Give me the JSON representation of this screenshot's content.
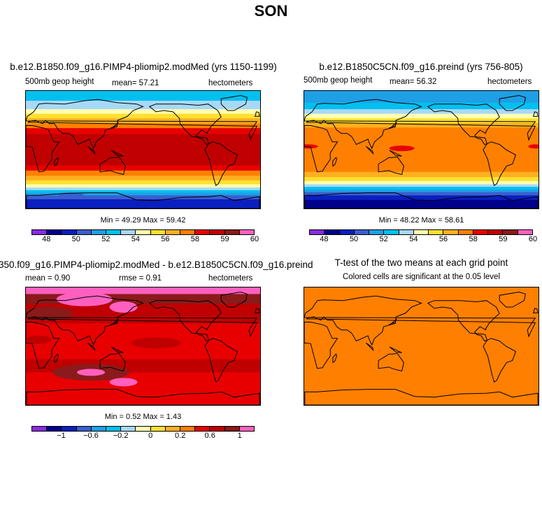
{
  "figure": {
    "title": "SON"
  },
  "palette": [
    "#8a2be2",
    "#00008b",
    "#0a1fbf",
    "#3a5fcd",
    "#1e9fe6",
    "#00c0f0",
    "#a8d8f8",
    "#ffffb0",
    "#ffe030",
    "#ffb020",
    "#ff8000",
    "#e80000",
    "#c00000",
    "#8b1a1a",
    "#ff60c0"
  ],
  "panels": [
    {
      "id": "a",
      "title": "b.e12.B1850.f09_g16.PIMP4-pliomip2.modMed (yrs 1150-1199)",
      "left_label": "500mb geop height",
      "mean_label": "mean=  57.21",
      "units": "hectometers",
      "minmax": "Min =  49.29 Max =  59.42",
      "ticks": [
        "48",
        "50",
        "52",
        "54",
        "56",
        "58",
        "59",
        "60"
      ],
      "bands": [
        {
          "lat": 90,
          "color": "#00c0f0"
        },
        {
          "lat": 75,
          "color": "#a8d8f8"
        },
        {
          "lat": 62,
          "color": "#ffffb0"
        },
        {
          "lat": 55,
          "color": "#ffe030"
        },
        {
          "lat": 48,
          "color": "#ffb020"
        },
        {
          "lat": 40,
          "color": "#ff8000"
        },
        {
          "lat": 33,
          "color": "#e80000"
        },
        {
          "lat": 24,
          "color": "#c00000"
        },
        {
          "lat": -24,
          "color": "#e80000"
        },
        {
          "lat": -32,
          "color": "#ff8000"
        },
        {
          "lat": -40,
          "color": "#ffb020"
        },
        {
          "lat": -47,
          "color": "#ffe030"
        },
        {
          "lat": -53,
          "color": "#ffffb0"
        },
        {
          "lat": -58,
          "color": "#a8d8f8"
        },
        {
          "lat": -62,
          "color": "#00c0f0"
        },
        {
          "lat": -66,
          "color": "#1e9fe6"
        },
        {
          "lat": -70,
          "color": "#3a5fcd"
        },
        {
          "lat": -76,
          "color": "#0a1fbf"
        }
      ]
    },
    {
      "id": "b",
      "title": "b.e12.B1850C5CN.f09_g16.preind (yrs 756-805)",
      "left_label": "500mb geop height",
      "mean_label": "mean=  56.32",
      "units": "hectometers",
      "minmax": "Min =  48.22 Max =  58.61",
      "ticks": [
        "48",
        "50",
        "52",
        "54",
        "56",
        "58",
        "59",
        "60"
      ],
      "bands": [
        {
          "lat": 90,
          "color": "#1e9fe6"
        },
        {
          "lat": 72,
          "color": "#00c0f0"
        },
        {
          "lat": 62,
          "color": "#a8d8f8"
        },
        {
          "lat": 55,
          "color": "#ffffb0"
        },
        {
          "lat": 48,
          "color": "#ffe030"
        },
        {
          "lat": 41,
          "color": "#ffb020"
        },
        {
          "lat": 34,
          "color": "#ff8000"
        },
        {
          "lat": -34,
          "color": "#ffb020"
        },
        {
          "lat": -42,
          "color": "#ffe030"
        },
        {
          "lat": -48,
          "color": "#ffffb0"
        },
        {
          "lat": -53,
          "color": "#a8d8f8"
        },
        {
          "lat": -57,
          "color": "#00c0f0"
        },
        {
          "lat": -61,
          "color": "#1e9fe6"
        },
        {
          "lat": -65,
          "color": "#3a5fcd"
        },
        {
          "lat": -70,
          "color": "#0a1fbf"
        },
        {
          "lat": -77,
          "color": "#00008b"
        }
      ]
    },
    {
      "id": "c",
      "title": "350.f09_g16.PIMP4-pliomip2.modMed - b.e12.B1850C5CN.f09_g16.preind",
      "left_label": "mean =   0.90",
      "mean_label": "rmse =   0.91",
      "units": "hectometers",
      "minmax": "Min =   0.52 Max =   1.43",
      "ticks": [
        "−1",
        "−0.6",
        "−0.2",
        "0",
        "0.2",
        "0.6",
        "1"
      ],
      "bands": [
        {
          "lat": 90,
          "color": "#ff60c0"
        },
        {
          "lat": 80,
          "color": "#8b1a1a"
        },
        {
          "lat": 65,
          "color": "#c00000"
        },
        {
          "lat": 35,
          "color": "#e80000"
        },
        {
          "lat": -20,
          "color": "#c00000"
        },
        {
          "lat": -40,
          "color": "#e80000"
        }
      ]
    },
    {
      "id": "d",
      "title": "T-test of the two means at each grid point",
      "left_label": "Colored cells are significant at the 0.05 level",
      "mean_label": "",
      "units": "",
      "minmax": "",
      "ticks": [],
      "bands": [
        {
          "lat": 90,
          "color": "#ff8000"
        }
      ]
    }
  ]
}
